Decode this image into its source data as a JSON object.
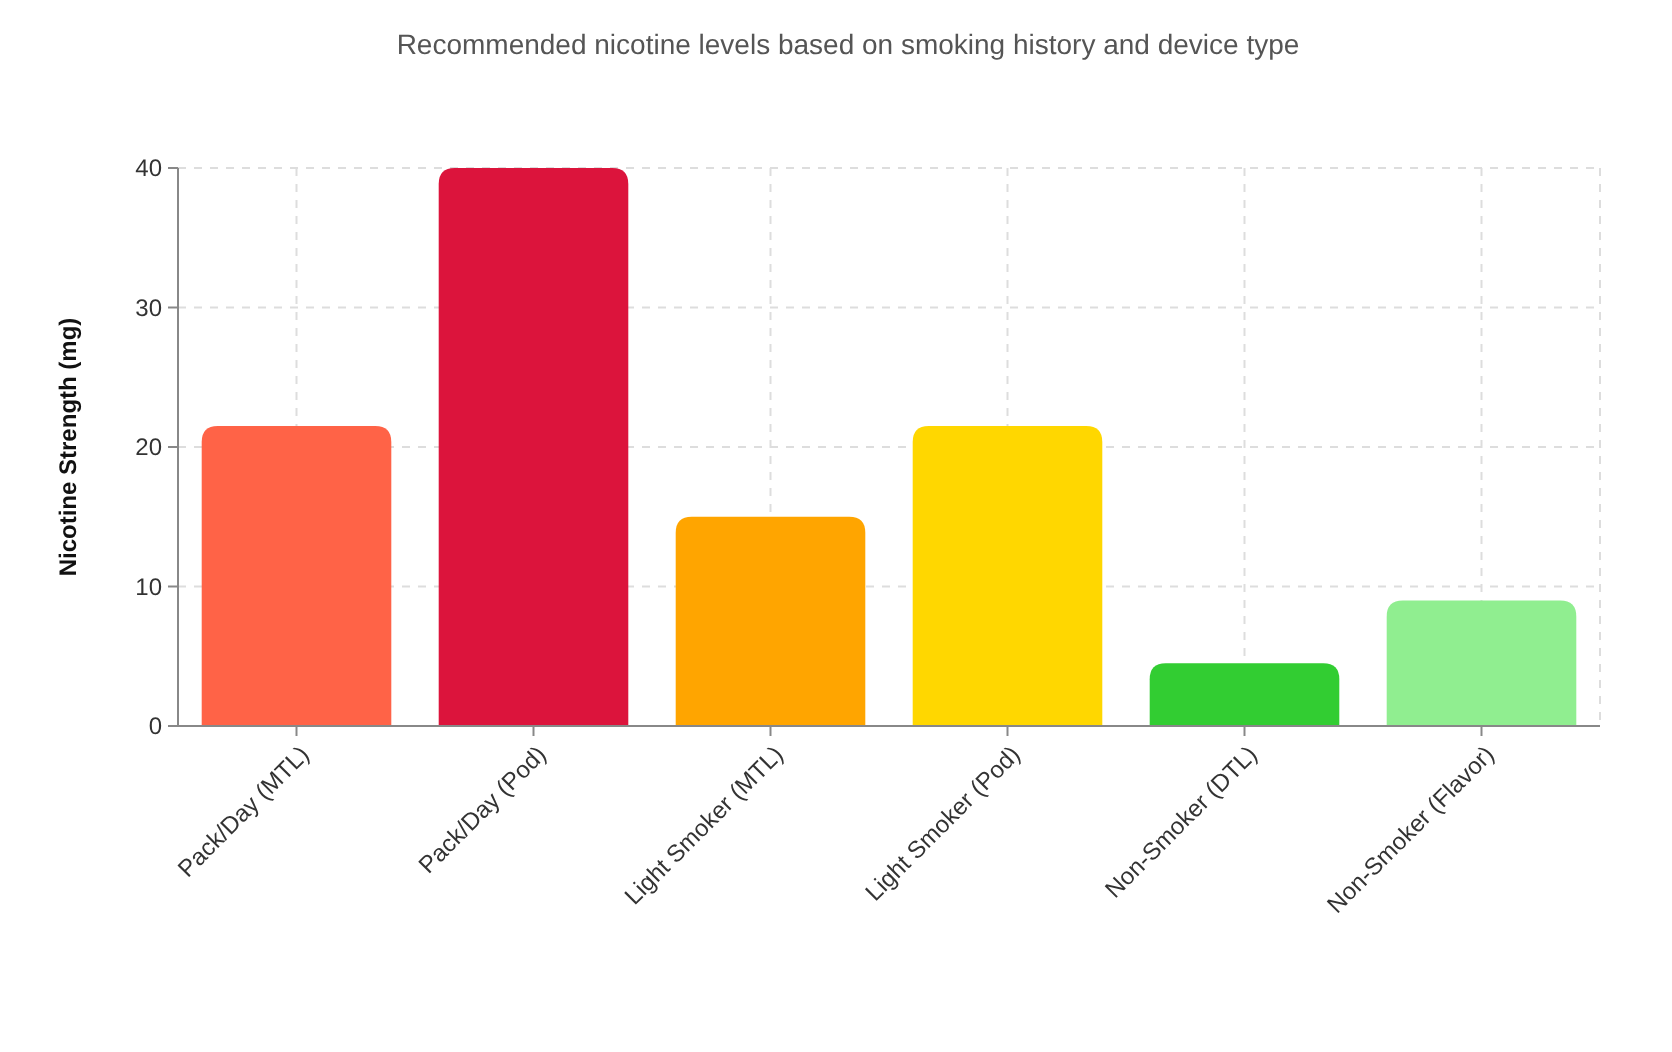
{
  "chart_data": {
    "type": "bar",
    "title": "Recommended nicotine levels based on smoking history and device type",
    "ylabel": "Nicotine Strength (mg)",
    "categories": [
      "Pack/Day (MTL)",
      "Pack/Day (Pod)",
      "Light Smoker (MTL)",
      "Light Smoker (Pod)",
      "Non-Smoker (DTL)",
      "Non-Smoker (Flavor)"
    ],
    "values": [
      21.5,
      40,
      15,
      21.5,
      4.5,
      9
    ],
    "colors": [
      "#ff6347",
      "#dc143c",
      "#ffa500",
      "#ffd700",
      "#32cd32",
      "#90ee90"
    ],
    "ylim": [
      0,
      40
    ],
    "yticks": [
      0,
      10,
      20,
      30,
      40
    ],
    "grid": true
  }
}
